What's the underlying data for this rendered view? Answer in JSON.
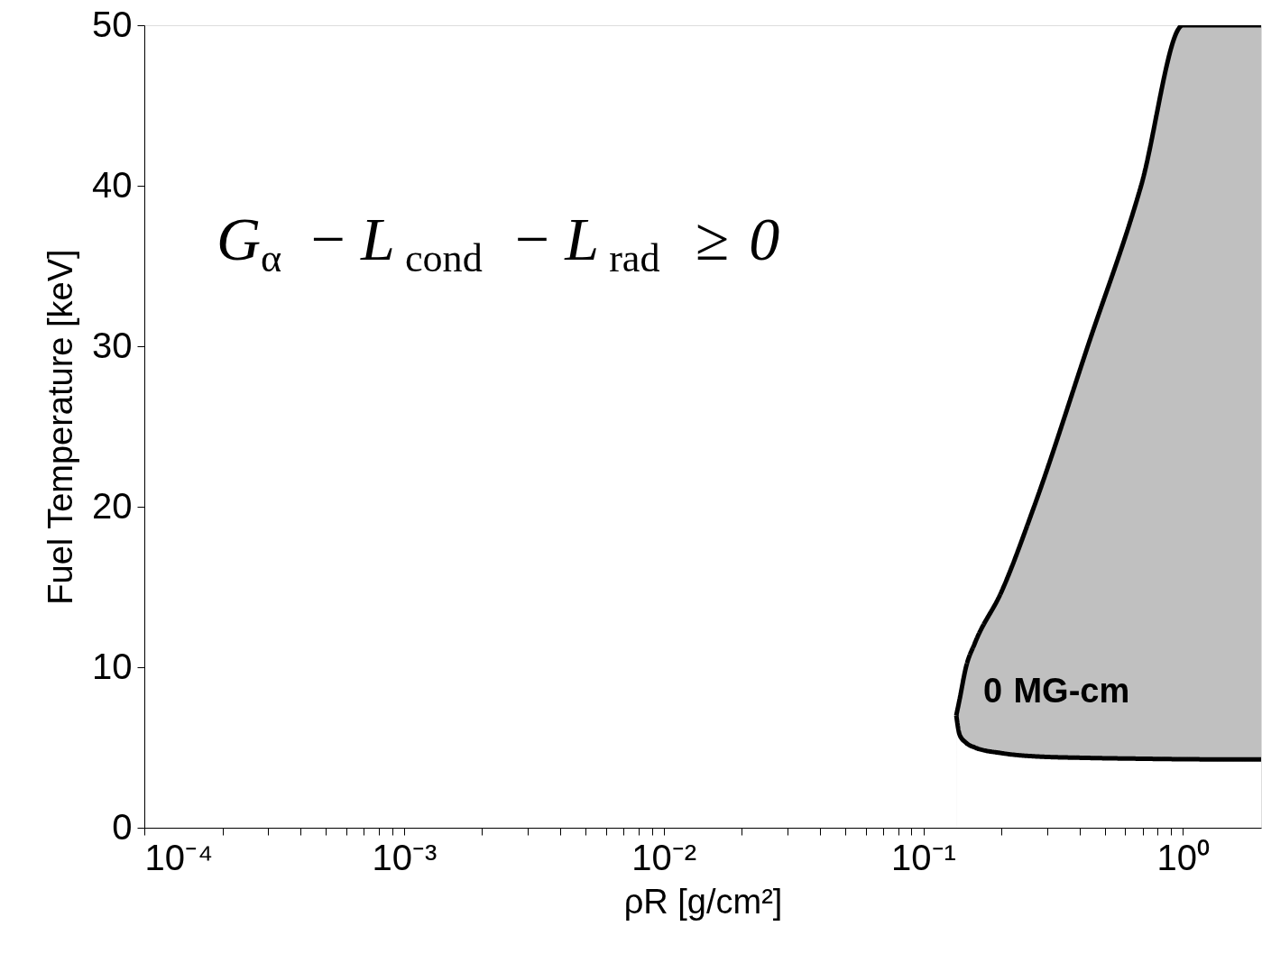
{
  "chart_data": {
    "type": "area",
    "xlabel": "ρR [g/cm²]",
    "ylabel": "Fuel Temperature [keV]",
    "log": "x",
    "xlim": [
      0.0001,
      2
    ],
    "ylim": [
      0,
      50
    ],
    "xticks": [
      {
        "value": 0.0001,
        "label": "10⁻⁴"
      },
      {
        "value": 0.0002,
        "label": null
      },
      {
        "value": 0.0003,
        "label": null
      },
      {
        "value": 0.0004,
        "label": null
      },
      {
        "value": 0.0005,
        "label": null
      },
      {
        "value": 0.0006,
        "label": null
      },
      {
        "value": 0.0007,
        "label": null
      },
      {
        "value": 0.0008,
        "label": null
      },
      {
        "value": 0.0009,
        "label": null
      },
      {
        "value": 0.001,
        "label": "10⁻³"
      },
      {
        "value": 0.002,
        "label": null
      },
      {
        "value": 0.003,
        "label": null
      },
      {
        "value": 0.004,
        "label": null
      },
      {
        "value": 0.005,
        "label": null
      },
      {
        "value": 0.006,
        "label": null
      },
      {
        "value": 0.007,
        "label": null
      },
      {
        "value": 0.008,
        "label": null
      },
      {
        "value": 0.009,
        "label": null
      },
      {
        "value": 0.01,
        "label": "10⁻²"
      },
      {
        "value": 0.02,
        "label": null
      },
      {
        "value": 0.03,
        "label": null
      },
      {
        "value": 0.04,
        "label": null
      },
      {
        "value": 0.05,
        "label": null
      },
      {
        "value": 0.06,
        "label": null
      },
      {
        "value": 0.07,
        "label": null
      },
      {
        "value": 0.08,
        "label": null
      },
      {
        "value": 0.09,
        "label": null
      },
      {
        "value": 0.1,
        "label": "10⁻¹"
      },
      {
        "value": 0.2,
        "label": null
      },
      {
        "value": 0.3,
        "label": null
      },
      {
        "value": 0.4,
        "label": null
      },
      {
        "value": 0.5,
        "label": null
      },
      {
        "value": 0.6,
        "label": null
      },
      {
        "value": 0.7,
        "label": null
      },
      {
        "value": 0.8,
        "label": null
      },
      {
        "value": 0.9,
        "label": null
      },
      {
        "value": 1,
        "label": "10⁰"
      }
    ],
    "yticks": [
      0,
      10,
      20,
      30,
      40,
      50
    ],
    "grid": false,
    "series": [
      {
        "color": "#c0c0c0",
        "x": [
          0.134,
          0.138,
          0.146,
          0.158,
          0.2,
          0.267,
          0.43,
          0.69,
          1.0,
          2.0
        ],
        "values": [
          7,
          8,
          10,
          11.5,
          14.7,
          20,
          30,
          40,
          50,
          50
        ]
      },
      {
        "color": "#ffffff",
        "x": [
          0.134,
          0.138,
          0.146,
          0.158,
          0.2,
          0.267,
          0.43,
          0.69,
          1.0,
          2.0
        ],
        "values": [
          7,
          5.8,
          5.3,
          5.0,
          4.65,
          4.45,
          4.35,
          4.3,
          4.27,
          4.25
        ]
      }
    ],
    "annotations": [
      "G$_{α}$ − L$_{cond}$ − L$_{rad}$ ≥ 0",
      "0 MG-cm"
    ]
  }
}
